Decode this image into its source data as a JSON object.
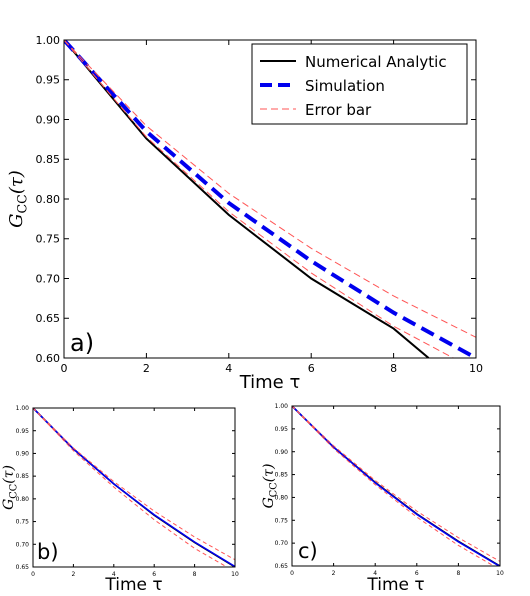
{
  "chart_data": [
    {
      "type": "line",
      "panel_label": "a)",
      "xlabel": "Time τ",
      "ylabel": "G_CC(τ)",
      "xlim": [
        0,
        10
      ],
      "ylim": [
        0.6,
        1.0
      ],
      "xticks": [
        "0",
        "2",
        "4",
        "6",
        "8",
        "10"
      ],
      "yticks": [
        "0.60",
        "0.65",
        "0.70",
        "0.75",
        "0.80",
        "0.85",
        "0.90",
        "0.95",
        "1.00"
      ],
      "legend": {
        "placement": "top-right",
        "entries": [
          "Numerical Analytic",
          "Simulation",
          "Error bar"
        ]
      },
      "series": [
        {
          "name": "Numerical Analytic",
          "color": "#000000",
          "style": "solid",
          "x": [
            0,
            2,
            4,
            6,
            8,
            8.85
          ],
          "y": [
            1.0,
            0.876,
            0.78,
            0.7,
            0.637,
            0.6
          ]
        },
        {
          "name": "Simulation",
          "color": "#0000ee",
          "style": "dashed",
          "x": [
            0,
            2,
            4,
            6,
            8,
            10
          ],
          "y": [
            1.0,
            0.885,
            0.795,
            0.722,
            0.657,
            0.6
          ]
        },
        {
          "name": "Error bar",
          "color": "#ff5555",
          "style": "dashed-thin",
          "x": [
            0,
            2,
            4,
            6,
            8,
            10
          ],
          "y": [
            1.0,
            0.892,
            0.807,
            0.738,
            0.678,
            0.626
          ]
        },
        {
          "name": "Error bar",
          "color": "#ff5555",
          "style": "dashed-thin",
          "x": [
            0,
            2,
            4,
            6,
            8,
            9.45
          ],
          "y": [
            1.0,
            0.878,
            0.784,
            0.707,
            0.64,
            0.6
          ]
        }
      ]
    },
    {
      "type": "line",
      "panel_label": "b)",
      "xlabel": "Time τ",
      "ylabel": "G_CC(τ)",
      "xlim": [
        0,
        10
      ],
      "ylim": [
        0.65,
        1.0
      ],
      "xticks": [
        "0",
        "2",
        "4",
        "6",
        "8",
        "10"
      ],
      "yticks": [
        "0.65",
        "0.70",
        "0.75",
        "0.80",
        "0.85",
        "0.90",
        "0.95",
        "1.00"
      ],
      "series": [
        {
          "name": "Numerical Analytic",
          "color": "#000000",
          "style": "solid",
          "x": [
            0,
            2,
            4,
            6,
            8,
            10
          ],
          "y": [
            1.0,
            0.91,
            0.833,
            0.764,
            0.704,
            0.65
          ]
        },
        {
          "name": "Simulation",
          "color": "#0000ee",
          "style": "solid",
          "x": [
            0,
            2,
            4,
            6,
            8,
            10
          ],
          "y": [
            1.0,
            0.91,
            0.833,
            0.765,
            0.705,
            0.651
          ]
        },
        {
          "name": "Error bar",
          "color": "#ff5555",
          "style": "dashed-thin",
          "x": [
            0,
            2,
            4,
            6,
            8,
            10
          ],
          "y": [
            1.0,
            0.912,
            0.838,
            0.773,
            0.716,
            0.666
          ]
        },
        {
          "name": "Error bar",
          "color": "#ff5555",
          "style": "dashed-thin",
          "x": [
            0,
            2,
            4,
            6,
            8,
            9.6
          ],
          "y": [
            1.0,
            0.906,
            0.826,
            0.754,
            0.691,
            0.65
          ]
        }
      ]
    },
    {
      "type": "line",
      "panel_label": "c)",
      "xlabel": "Time τ",
      "ylabel": "G_CC(τ)",
      "xlim": [
        0,
        10
      ],
      "ylim": [
        0.65,
        1.0
      ],
      "xticks": [
        "0",
        "2",
        "4",
        "6",
        "8",
        "10"
      ],
      "yticks": [
        "0.65",
        "0.70",
        "0.75",
        "0.80",
        "0.85",
        "0.90",
        "0.95",
        "1.00"
      ],
      "series": [
        {
          "name": "Numerical Analytic",
          "color": "#000000",
          "style": "solid",
          "x": [
            0,
            2,
            4,
            6,
            8,
            10
          ],
          "y": [
            1.0,
            0.91,
            0.833,
            0.764,
            0.704,
            0.65
          ]
        },
        {
          "name": "Simulation",
          "color": "#0000ee",
          "style": "solid",
          "x": [
            0,
            2,
            4,
            6,
            8,
            10
          ],
          "y": [
            1.0,
            0.91,
            0.832,
            0.763,
            0.703,
            0.649
          ]
        },
        {
          "name": "Error bar",
          "color": "#ff5555",
          "style": "dashed-thin",
          "x": [
            0,
            2,
            4,
            6,
            8,
            10
          ],
          "y": [
            1.0,
            0.913,
            0.837,
            0.77,
            0.712,
            0.66
          ]
        },
        {
          "name": "Error bar",
          "color": "#ff5555",
          "style": "dashed-thin",
          "x": [
            0,
            2,
            4,
            6,
            8,
            9.7
          ],
          "y": [
            1.0,
            0.907,
            0.828,
            0.757,
            0.695,
            0.65
          ]
        }
      ]
    }
  ]
}
